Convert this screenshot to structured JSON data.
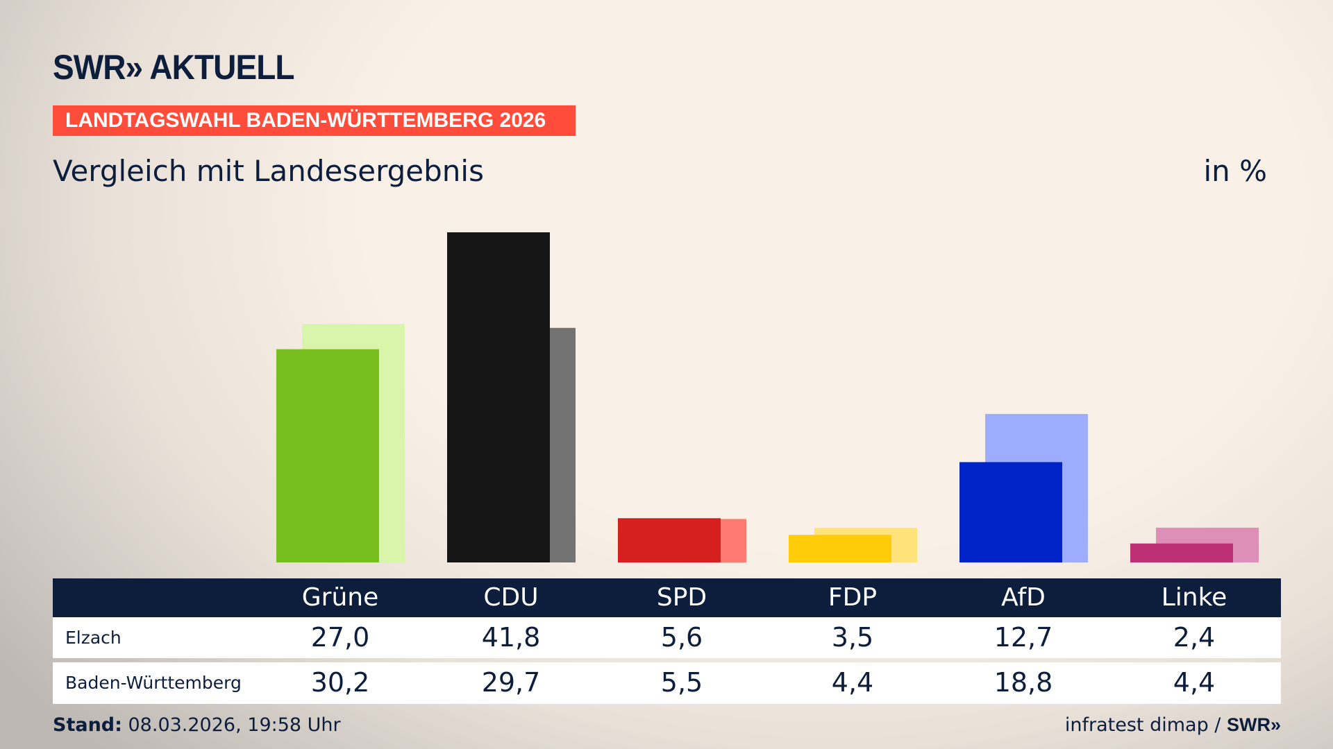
{
  "header": {
    "logo": "SWR» AKTUELL",
    "banner": "LANDTAGSWAHL BADEN-WÜRTTEMBERG 2026",
    "subtitle": "Vergleich mit Landesergebnis",
    "unit": "in %"
  },
  "chart_data": {
    "type": "bar",
    "categories": [
      "Grüne",
      "CDU",
      "SPD",
      "FDP",
      "AfD",
      "Linke"
    ],
    "series": [
      {
        "name": "Elzach",
        "values": [
          27.0,
          41.8,
          5.6,
          3.5,
          12.7,
          2.4
        ],
        "labels": [
          "27,0",
          "41,8",
          "5,6",
          "3,5",
          "12,7",
          "2,4"
        ]
      },
      {
        "name": "Baden-Württemberg",
        "values": [
          30.2,
          29.7,
          5.5,
          4.4,
          18.8,
          4.4
        ],
        "labels": [
          "30,2",
          "29,7",
          "5,5",
          "4,4",
          "18,8",
          "4,4"
        ]
      }
    ],
    "colors": {
      "primary": [
        "#78be1e",
        "#151515",
        "#d61f1f",
        "#ffcc0a",
        "#0024c8",
        "#be3075"
      ],
      "secondary": [
        "#d8f5aa",
        "#737373",
        "#ff7a73",
        "#ffe37a",
        "#9eacff",
        "#de8fb8"
      ]
    },
    "ylim": [
      0,
      41.8
    ],
    "grid": false
  },
  "footer": {
    "stand_label": "Stand:",
    "stand_value": " 08.03.2026, 19:58 Uhr",
    "source": "infratest dimap / ",
    "source_logo": "SWR»"
  }
}
